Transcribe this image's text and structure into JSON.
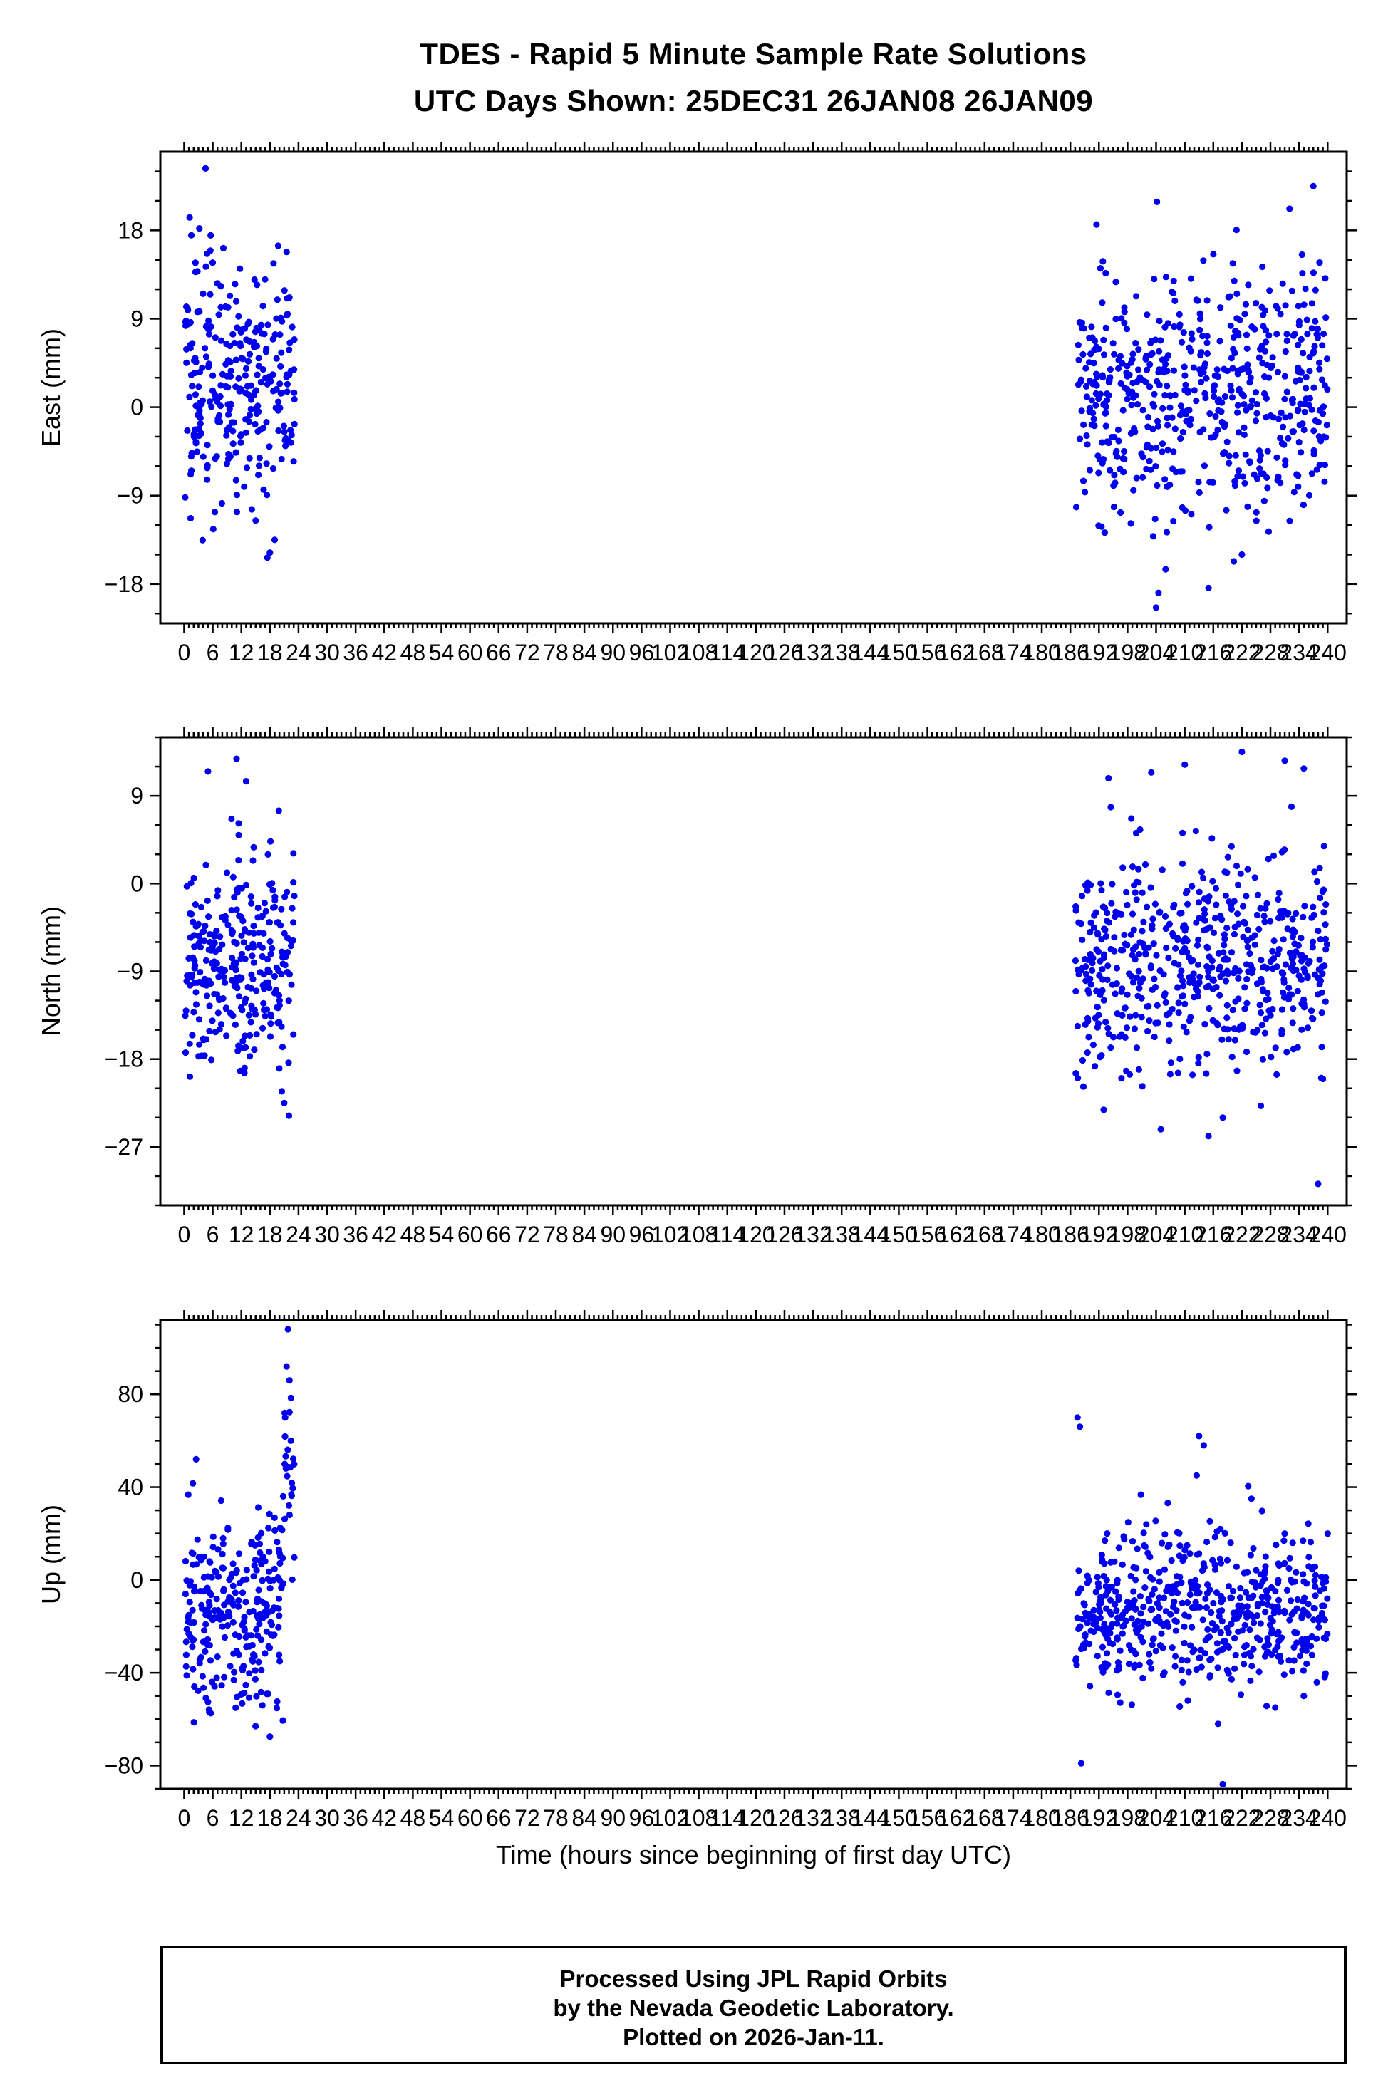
{
  "title": {
    "line1": "TDES - Rapid 5 Minute Sample Rate Solutions",
    "line2": "UTC Days Shown:  25DEC31 26JAN08 26JAN09"
  },
  "xlabel": "Time (hours since beginning of first day UTC)",
  "footer": {
    "line1": "Processed Using JPL Rapid Orbits",
    "line2": "by the Nevada Geodetic Laboratory.",
    "line3": "Plotted on 2026-Jan-11."
  },
  "point_color": "#0000ee",
  "axis_color": "#000000",
  "chart_data": [
    {
      "type": "scatter",
      "ylabel": "East (mm)",
      "ylim": [
        -22,
        26
      ],
      "yticks": [
        -18,
        -9,
        0,
        9,
        18
      ],
      "y_minor_step": 3,
      "xlim": [
        -5,
        244
      ],
      "xtick_range": [
        0,
        240
      ],
      "xticks_step": 6,
      "x_minor_step": 1,
      "seed": 11,
      "clusters": [
        {
          "x_range": [
            0.2,
            23.2
          ],
          "n": 290,
          "mean": 2.5,
          "std": 6.0,
          "clip": [
            -15.5,
            21.0
          ]
        },
        {
          "x_range": [
            187,
            240
          ],
          "n": 560,
          "mean": 1.5,
          "std": 6.5,
          "clip": [
            -17.0,
            21.0
          ]
        }
      ],
      "extra_points": [
        [
          4.5,
          24.3
        ],
        [
          3.2,
          18.2
        ],
        [
          1.5,
          17.5
        ],
        [
          21.5,
          15.8
        ],
        [
          18,
          -14.8
        ],
        [
          19,
          -13.5
        ],
        [
          204,
          -20.4
        ],
        [
          204.5,
          -18.9
        ],
        [
          215,
          -18.4
        ],
        [
          237,
          22.5
        ],
        [
          191.5,
          18.6
        ],
        [
          232,
          20.2
        ],
        [
          222,
          -15.0
        ],
        [
          206,
          -16.5
        ]
      ]
    },
    {
      "type": "scatter",
      "ylabel": "North (mm)",
      "ylim": [
        -33,
        15
      ],
      "yticks": [
        -27,
        -18,
        -9,
        0,
        9
      ],
      "y_minor_step": 3,
      "xlim": [
        -5,
        244
      ],
      "xtick_range": [
        0,
        240
      ],
      "xticks_step": 6,
      "x_minor_step": 1,
      "seed": 22,
      "clusters": [
        {
          "x_range": [
            0.2,
            23.2
          ],
          "n": 290,
          "mean": -8.0,
          "std": 5.5,
          "clip": [
            -20.0,
            11.0
          ]
        },
        {
          "x_range": [
            187,
            240
          ],
          "n": 560,
          "mean": -8.5,
          "std": 5.5,
          "clip": [
            -22.0,
            11.5
          ]
        }
      ],
      "extra_points": [
        [
          11,
          12.8
        ],
        [
          5,
          11.5
        ],
        [
          13,
          10.5
        ],
        [
          21,
          -22.5
        ],
        [
          22,
          -23.8
        ],
        [
          20.5,
          -21.3
        ],
        [
          1.2,
          -19.8
        ],
        [
          238,
          -30.8
        ],
        [
          205,
          -25.2
        ],
        [
          215,
          -25.9
        ],
        [
          193,
          -23.2
        ],
        [
          226,
          -22.8
        ],
        [
          218,
          -24.0
        ],
        [
          222,
          13.5
        ],
        [
          203,
          11.4
        ],
        [
          231,
          12.6
        ],
        [
          210,
          12.2
        ],
        [
          194,
          10.8
        ],
        [
          235,
          11.8
        ]
      ]
    },
    {
      "type": "scatter",
      "ylabel": "Up (mm)",
      "ylim": [
        -90,
        112
      ],
      "yticks": [
        -80,
        -40,
        0,
        40,
        80
      ],
      "y_minor_step": 10,
      "xlim": [
        -5,
        244
      ],
      "xtick_range": [
        0,
        240
      ],
      "xticks_step": 6,
      "x_minor_step": 1,
      "seed": 33,
      "clusters": [
        {
          "x_range": [
            0.2,
            20.8
          ],
          "n": 270,
          "mean": -12.0,
          "std": 22.0,
          "clip": [
            -62.0,
            48.0
          ]
        },
        {
          "x_range": [
            21.0,
            23.2
          ],
          "n": 22,
          "mean": 45.0,
          "std": 28.0,
          "clip": [
            -5.0,
            100.0
          ]
        },
        {
          "x_range": [
            187,
            240
          ],
          "n": 560,
          "mean": -14.0,
          "std": 17.0,
          "clip": [
            -55.0,
            42.0
          ]
        }
      ],
      "extra_points": [
        [
          21.8,
          108
        ],
        [
          21.5,
          92
        ],
        [
          22.1,
          86
        ],
        [
          21.2,
          70
        ],
        [
          22.4,
          60
        ],
        [
          15,
          -63
        ],
        [
          18,
          -67.5
        ],
        [
          2.5,
          52
        ],
        [
          188,
          66
        ],
        [
          187.5,
          70
        ],
        [
          213,
          62
        ],
        [
          214,
          58
        ],
        [
          212.5,
          45
        ],
        [
          218,
          -88
        ],
        [
          188.3,
          -79
        ],
        [
          217,
          -62
        ],
        [
          229,
          -55
        ],
        [
          235,
          -50
        ],
        [
          224,
          35
        ],
        [
          240,
          20
        ]
      ]
    }
  ]
}
